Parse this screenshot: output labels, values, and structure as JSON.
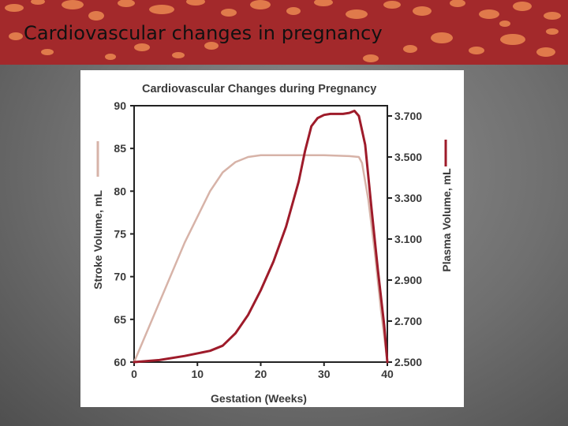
{
  "slide": {
    "title": "Cardiovascular changes in pregnancy"
  },
  "colors": {
    "banner": "#a3292b",
    "banner_spot": "#e07a4b",
    "stroke_volume_series": "#d7b3a8",
    "plasma_volume_series": "#9e1b2a",
    "axis": "#222222"
  },
  "chart_data": {
    "type": "line",
    "title": "Cardiovascular Changes during Pregnancy",
    "xlabel": "Gestation (Weeks)",
    "ylabel_left": "Stroke Volume, mL",
    "ylabel_right": "Plasma Volume, mL",
    "xlim": [
      0,
      40
    ],
    "ylim_left": [
      60,
      90
    ],
    "ylim_right": [
      2500,
      3750
    ],
    "x_ticks": [
      0,
      10,
      20,
      30,
      40
    ],
    "x_tick_labels": [
      "0",
      "10",
      "20",
      "30",
      "40"
    ],
    "y_left_ticks": [
      60,
      65,
      70,
      75,
      80,
      85,
      90
    ],
    "y_left_tick_labels": [
      "60",
      "65",
      "70",
      "75",
      "80",
      "85",
      "90"
    ],
    "y_right_ticks": [
      2500,
      2700,
      2900,
      3100,
      3300,
      3500,
      3700
    ],
    "y_right_tick_labels": [
      "2.500",
      "2.700",
      "2.900",
      "3.100",
      "3.300",
      "3.500",
      "3.700"
    ],
    "series": [
      {
        "name": "Stroke Volume",
        "axis": "left",
        "color": "#d7b3a8",
        "x": [
          0,
          4,
          8,
          12,
          14,
          16,
          18,
          20,
          25,
          30,
          34,
          35.5,
          36,
          37,
          38,
          39,
          40
        ],
        "y": [
          60,
          67,
          74,
          80,
          82.2,
          83.4,
          84,
          84.2,
          84.2,
          84.2,
          84.1,
          84,
          83.3,
          79,
          73,
          66,
          60
        ]
      },
      {
        "name": "Plasma Volume",
        "axis": "right",
        "color": "#9e1b2a",
        "x": [
          0,
          4,
          8,
          12,
          14,
          16,
          18,
          20,
          22,
          24,
          26,
          27,
          28,
          29,
          30,
          31,
          32,
          33,
          34,
          34.8,
          35.5,
          36.5,
          37.5,
          38.5,
          39.5,
          40
        ],
        "y": [
          2500,
          2510,
          2530,
          2555,
          2580,
          2640,
          2730,
          2850,
          2990,
          3160,
          3380,
          3530,
          3650,
          3690,
          3705,
          3710,
          3710,
          3710,
          3715,
          3725,
          3700,
          3560,
          3250,
          2950,
          2680,
          2500
        ]
      }
    ]
  }
}
